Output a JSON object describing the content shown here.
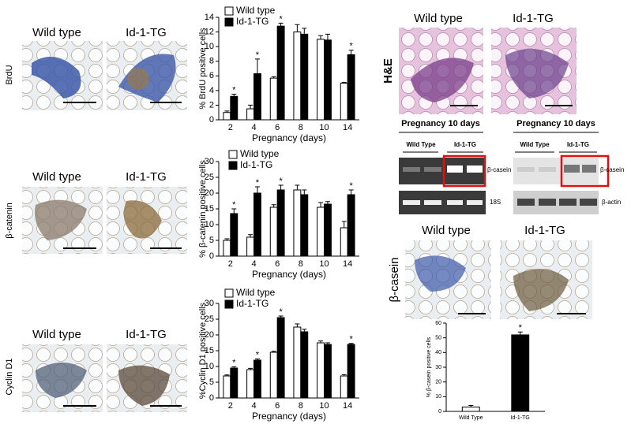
{
  "chart_data": [
    {
      "type": "bar",
      "y_label": "% BrdU positive cells",
      "x_label": "Pregnancy (days)",
      "categories": [
        "2",
        "4",
        "6",
        "8",
        "10",
        "14"
      ],
      "series": [
        {
          "name": "Wild type",
          "color": "#ffffff",
          "values": [
            1,
            1.5,
            5.7,
            12,
            11,
            5
          ],
          "errors": [
            0.2,
            0.5,
            0.2,
            1,
            0.5,
            0.1
          ]
        },
        {
          "name": "Id-1-TG",
          "color": "#000000",
          "values": [
            3.2,
            6.3,
            12.8,
            11.7,
            10.9,
            8.9
          ],
          "errors": [
            0.3,
            2,
            0.4,
            0.8,
            0.8,
            0.6
          ]
        }
      ],
      "significance": [
        "*",
        "*",
        "*",
        null,
        null,
        "*"
      ],
      "ylim": [
        0,
        14
      ],
      "yticks": [
        0,
        2,
        4,
        6,
        8,
        10,
        12,
        14
      ]
    },
    {
      "type": "bar",
      "y_label": "% β-catenin positive cells",
      "x_label": "Pregnancy (days)",
      "categories": [
        "2",
        "4",
        "6",
        "8",
        "10",
        "14"
      ],
      "series": [
        {
          "name": "Wild type",
          "color": "#ffffff",
          "values": [
            5,
            6,
            15.5,
            21,
            15.5,
            9
          ],
          "errors": [
            0.5,
            0.8,
            0.8,
            1.5,
            1.5,
            2
          ]
        },
        {
          "name": "Id-1-TG",
          "color": "#000000",
          "values": [
            13.5,
            20,
            21,
            19.5,
            16.5,
            19.5
          ],
          "errors": [
            1.5,
            2,
            1.5,
            1.5,
            0.8,
            1.5
          ]
        }
      ],
      "significance": [
        "*",
        "*",
        "*",
        null,
        null,
        "*"
      ],
      "ylim": [
        0,
        30
      ],
      "yticks": [
        0,
        5,
        10,
        15,
        20,
        25,
        30
      ]
    },
    {
      "type": "bar",
      "y_label": "%Cyclin D1 positive cells",
      "x_label": "Pregnancy (days)",
      "categories": [
        "2",
        "4",
        "6",
        "8",
        "10",
        "14"
      ],
      "series": [
        {
          "name": "Wild type",
          "color": "#ffffff",
          "values": [
            7,
            9,
            14.5,
            22.5,
            17.5,
            7
          ],
          "errors": [
            0.3,
            0.4,
            0.3,
            1,
            0.6,
            0.4
          ]
        },
        {
          "name": "Id-1-TG",
          "color": "#000000",
          "values": [
            9.5,
            12,
            25.5,
            21,
            17,
            17
          ],
          "errors": [
            0.4,
            0.4,
            0.5,
            0.8,
            0.5,
            0.3
          ]
        }
      ],
      "significance": [
        "*",
        "*",
        "*",
        null,
        null,
        "*"
      ],
      "ylim": [
        0,
        30
      ],
      "yticks": [
        0,
        5,
        10,
        15,
        20,
        25,
        30
      ]
    },
    {
      "type": "bar",
      "y_label": "% β-casein positive cells",
      "categories": [
        "Wild Type",
        "Id-1-TG"
      ],
      "series": [
        {
          "colors": [
            "#ffffff",
            "#000000"
          ],
          "values": [
            3,
            52
          ],
          "errors": [
            1,
            2
          ]
        }
      ],
      "significance": [
        null,
        "*"
      ],
      "ylim": [
        0,
        60
      ],
      "yticks": [
        0,
        10,
        20,
        30,
        40,
        50,
        60
      ]
    }
  ],
  "ihc_rows": [
    {
      "row_label": "BrdU",
      "col_labels": [
        "Wild type",
        "Id-1-TG"
      ]
    },
    {
      "row_label": "β-catenin",
      "col_labels": [
        "Wild type",
        "Id-1-TG"
      ]
    },
    {
      "row_label": "Cyclin D1",
      "col_labels": [
        "Wild type",
        "Id-1-TG"
      ]
    }
  ],
  "he": {
    "row_label": "H&E",
    "col_labels": [
      "Wild type",
      "Id-1-TG"
    ]
  },
  "blots": [
    {
      "title": "Pregnancy 10 days",
      "groups": [
        "Wild Type",
        "Id-1-TG"
      ],
      "band_labels": [
        "β-casein",
        "18S"
      ]
    },
    {
      "title": "Pregnancy 10 days",
      "groups": [
        "Wild Type",
        "Id-1-TG"
      ],
      "band_labels": [
        "β-casein",
        "β-actin"
      ]
    }
  ],
  "casein_ihc": {
    "row_label": "β-casein",
    "col_labels": [
      "Wild type",
      "Id-1-TG"
    ]
  }
}
